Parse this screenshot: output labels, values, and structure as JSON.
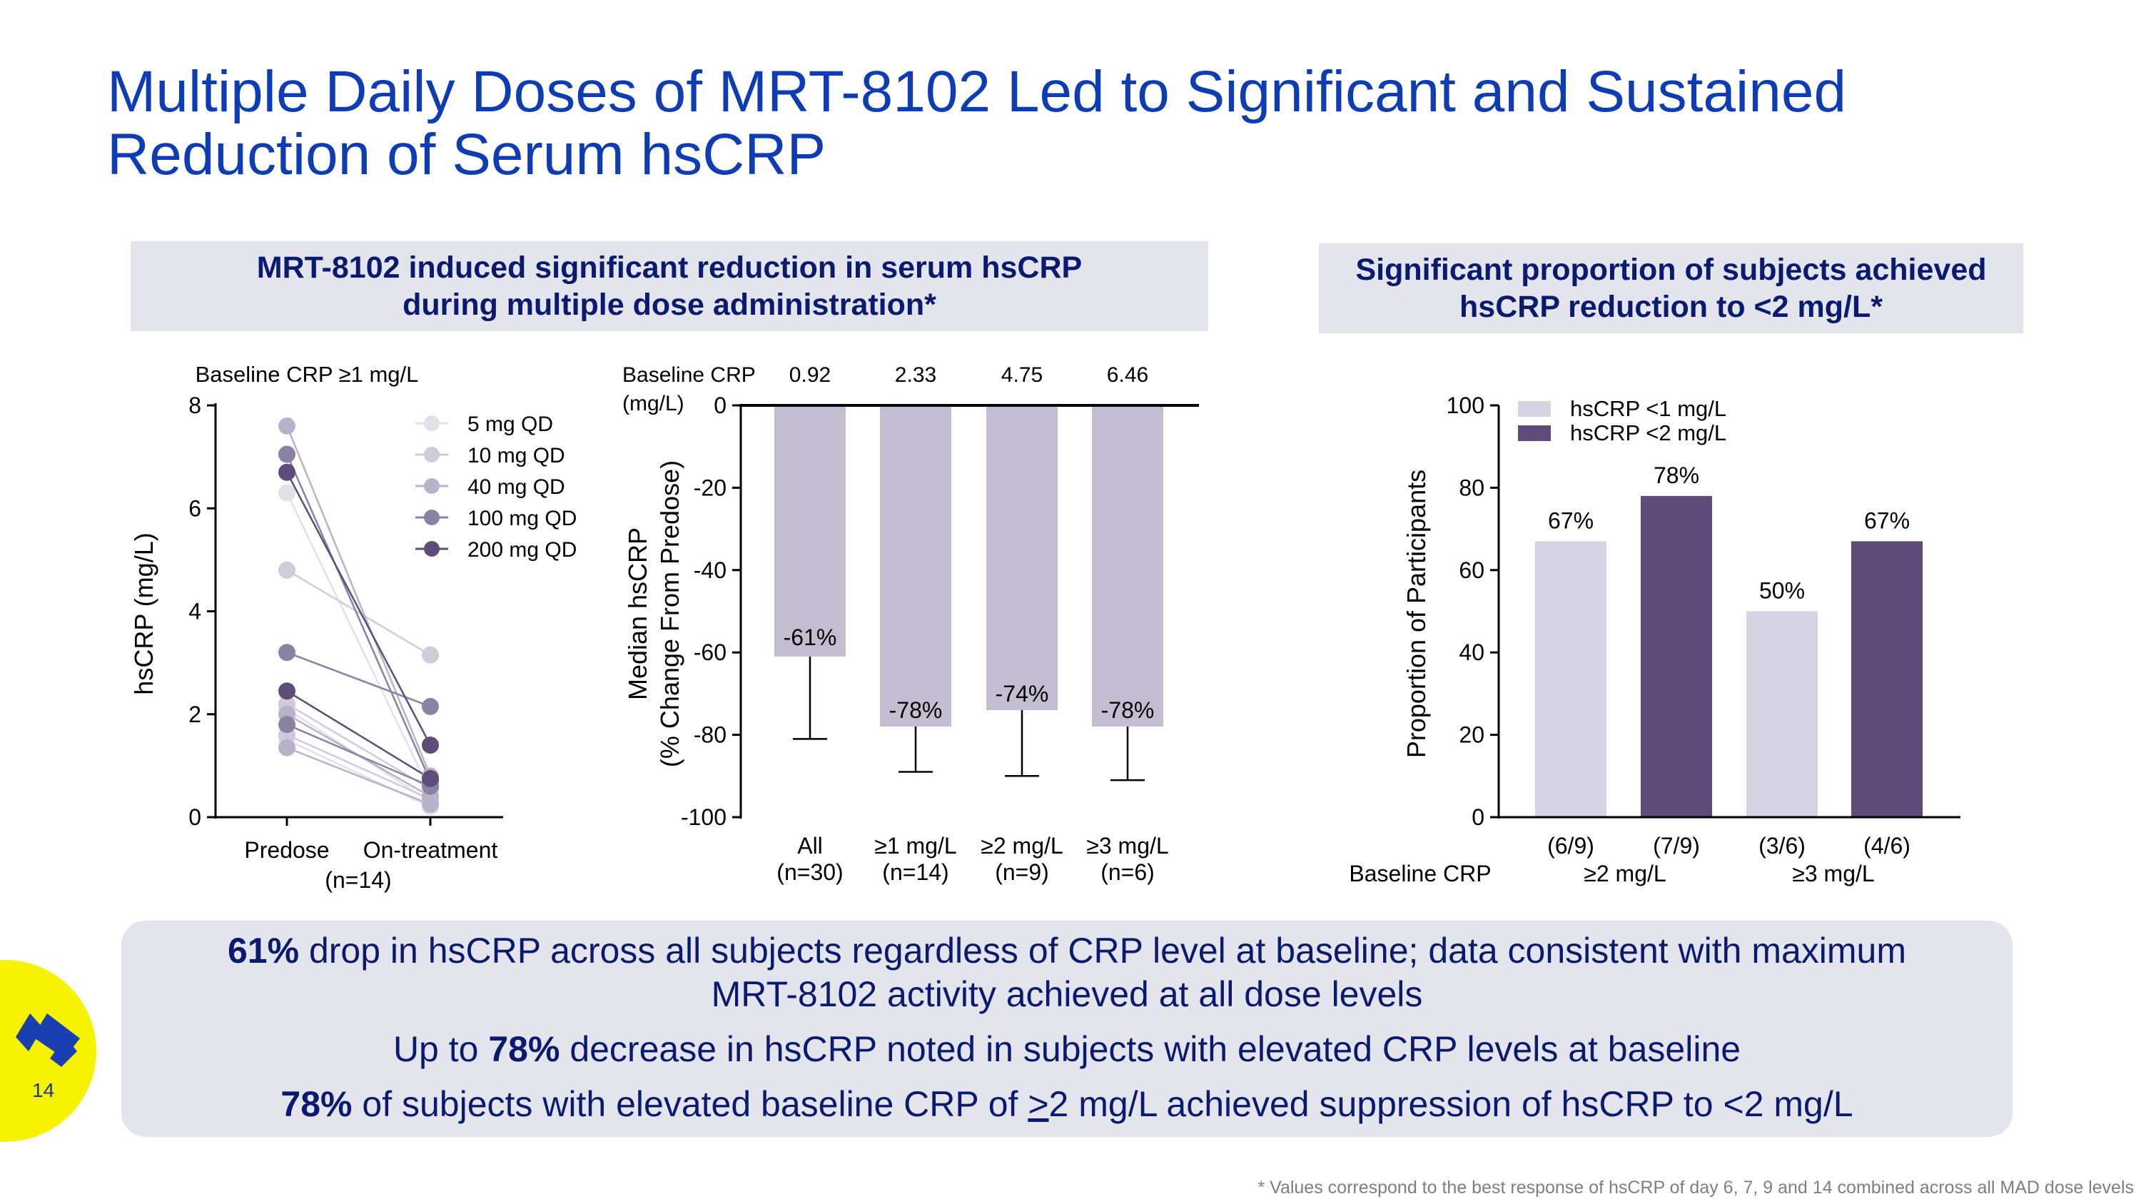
{
  "title": {
    "line1": "Multiple Daily Doses of MRT-8102 Led to Significant and Sustained",
    "line2": "Reduction of Serum hsCRP"
  },
  "left_header": {
    "line1": "MRT-8102 induced significant reduction in serum hsCRP",
    "line2": "during multiple dose administration*"
  },
  "right_header": {
    "line1": "Significant proportion of subjects achieved",
    "line2": "hsCRP reduction to <2 mg/L*"
  },
  "chart_data": [
    {
      "type": "scatter",
      "subtype": "paired-line",
      "title": "Baseline CRP ≥1 mg/L",
      "ylabel": "hsCRP  (mg/L)",
      "ylim": [
        0,
        8
      ],
      "yticks": [
        "0",
        "2",
        "4",
        "6",
        "8"
      ],
      "categories": [
        "Predose",
        "On-treatment"
      ],
      "n_label": "(n=14)",
      "legend": [
        {
          "name": "5 mg QD",
          "color": "#e2e1ea"
        },
        {
          "name": "10 mg QD",
          "color": "#cfcbdb"
        },
        {
          "name": "40 mg QD",
          "color": "#b9b2c9"
        },
        {
          "name": "100 mg QD",
          "color": "#8b82a3"
        },
        {
          "name": "200 mg QD",
          "color": "#5e4d78"
        }
      ],
      "series": [
        {
          "dose": "5 mg QD",
          "predose": 6.3,
          "on_treatment": 0.5
        },
        {
          "dose": "5 mg QD",
          "predose": 1.5,
          "on_treatment": 0.2
        },
        {
          "dose": "5 mg QD",
          "predose": 2.1,
          "on_treatment": 0.3
        },
        {
          "dose": "10 mg QD",
          "predose": 4.8,
          "on_treatment": 3.15
        },
        {
          "dose": "10 mg QD",
          "predose": 2.2,
          "on_treatment": 0.55
        },
        {
          "dose": "10 mg QD",
          "predose": 1.6,
          "on_treatment": 0.35
        },
        {
          "dose": "40 mg QD",
          "predose": 7.6,
          "on_treatment": 0.8
        },
        {
          "dose": "40 mg QD",
          "predose": 2.0,
          "on_treatment": 0.4
        },
        {
          "dose": "40 mg QD",
          "predose": 1.35,
          "on_treatment": 0.25
        },
        {
          "dose": "100 mg QD",
          "predose": 7.05,
          "on_treatment": 0.7
        },
        {
          "dose": "100 mg QD",
          "predose": 3.2,
          "on_treatment": 2.15
        },
        {
          "dose": "100 mg QD",
          "predose": 1.8,
          "on_treatment": 0.6
        },
        {
          "dose": "200 mg QD",
          "predose": 6.7,
          "on_treatment": 1.4
        },
        {
          "dose": "200 mg QD",
          "predose": 2.45,
          "on_treatment": 0.75
        }
      ]
    },
    {
      "type": "bar",
      "ylabel_line1": "Median hsCRP",
      "ylabel_line2": "(% Change From Predose)",
      "ylim": [
        -100,
        0
      ],
      "yticks": [
        "0",
        "-20",
        "-40",
        "-60",
        "-80",
        "-100"
      ],
      "baseline_label_line1": "Baseline CRP",
      "baseline_label_line2": "(mg/L)",
      "bar_color": "#c4bdd1",
      "categories": [
        {
          "label": "All",
          "n": "(n=30)",
          "baseline": "0.92",
          "value": -61,
          "error_low": -81,
          "value_label": "-61%"
        },
        {
          "label": "≥1 mg/L",
          "n": "(n=14)",
          "baseline": "2.33",
          "value": -78,
          "error_low": -89,
          "value_label": "-78%"
        },
        {
          "label": "≥2 mg/L",
          "n": "(n=9)",
          "baseline": "4.75",
          "value": -74,
          "error_low": -90,
          "value_label": "-74%"
        },
        {
          "label": "≥3 mg/L",
          "n": "(n=6)",
          "baseline": "6.46",
          "value": -78,
          "error_low": -91,
          "value_label": "-78%"
        }
      ]
    },
    {
      "type": "bar",
      "ylabel": "Proportion of Participants",
      "ylim": [
        0,
        100
      ],
      "yticks": [
        "0",
        "20",
        "40",
        "60",
        "80",
        "100"
      ],
      "legend": [
        {
          "name": "hsCRP <1 mg/L",
          "color": "#d6d4e2"
        },
        {
          "name": "hsCRP <2 mg/L",
          "color": "#5e4b79"
        }
      ],
      "baseline_label": "Baseline CRP",
      "groups": [
        "≥2 mg/L",
        "≥3 mg/L"
      ],
      "bars": [
        {
          "group": "≥2 mg/L",
          "series": "hsCRP <1 mg/L",
          "value": 67,
          "value_label": "67%",
          "count": "(6/9)"
        },
        {
          "group": "≥2 mg/L",
          "series": "hsCRP <2 mg/L",
          "value": 78,
          "value_label": "78%",
          "count": "(7/9)"
        },
        {
          "group": "≥3 mg/L",
          "series": "hsCRP <1 mg/L",
          "value": 50,
          "value_label": "50%",
          "count": "(3/6)"
        },
        {
          "group": "≥3 mg/L",
          "series": "hsCRP <2 mg/L",
          "value": 67,
          "value_label": "67%",
          "count": "(4/6)"
        }
      ]
    }
  ],
  "summary": {
    "line1_bold": "61%",
    "line1_rest": " drop in hsCRP across all subjects regardless of CRP level at baseline; data consistent with maximum",
    "line2": "MRT-8102 activity achieved at all dose levels",
    "line3_pre": "Up to ",
    "line3_bold": "78%",
    "line3_rest": " decrease in hsCRP noted in subjects with elevated CRP levels at baseline",
    "line4_bold": "78%",
    "line4_pre": " of subjects with elevated baseline CRP of ",
    "line4_underlined": ">",
    "line4_rest": "2 mg/L achieved suppression of hsCRP to <2 mg/L"
  },
  "page_number": "14",
  "logo_color": "#1a3fb0",
  "footnote": "* Values correspond to the best response of hsCRP of day 6, 7, 9 and 14 combined across all MAD dose levels"
}
